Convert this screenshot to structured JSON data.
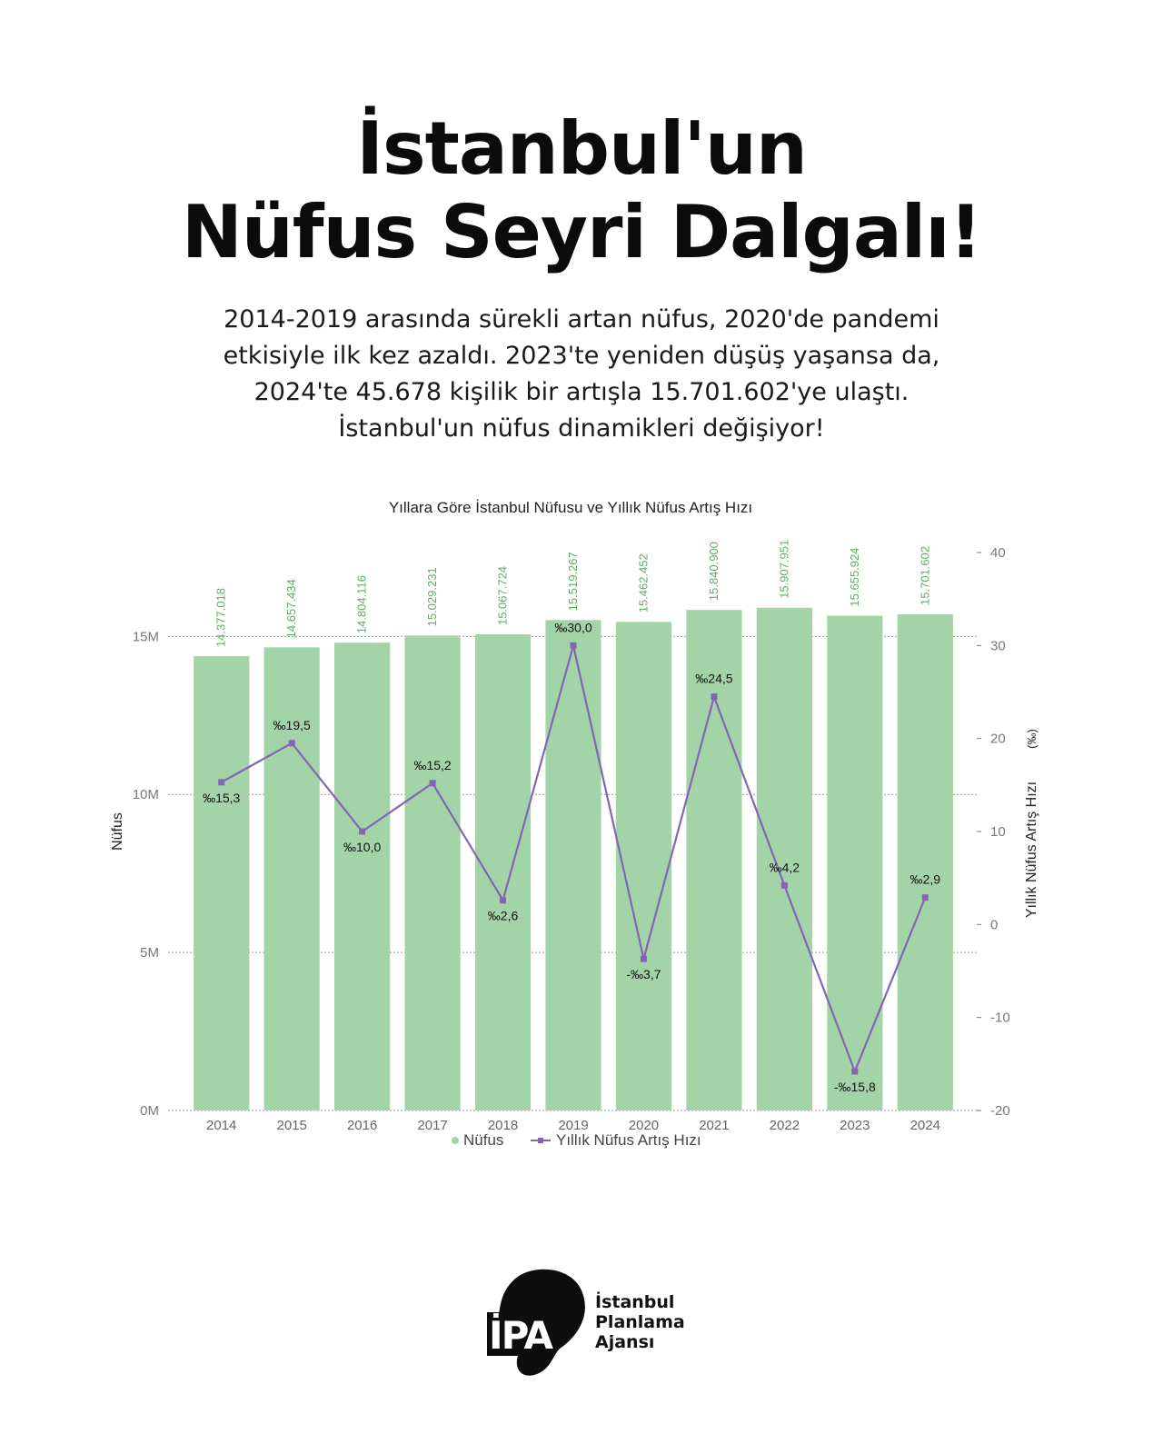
{
  "header": {
    "title_line1": "İstanbul'un",
    "title_line2": "Nüfus Seyri Dalgalı!",
    "subtitle_line1": "2014-2019 arasında sürekli artan nüfus, 2020'de pandemi",
    "subtitle_line2": "etkisiyle ilk kez azaldı. 2023'te yeniden düşüş yaşansa da,",
    "subtitle_line3": "2024'te 45.678 kişilik bir artışla 15.701.602'ye ulaştı.",
    "subtitle_line4": "İstanbul'un nüfus dinamikleri değişiyor!"
  },
  "chart_data": {
    "type": "bar",
    "title": "Yıllara Göre İstanbul Nüfusu ve Yıllık Nüfus Artış Hızı",
    "categories": [
      "2014",
      "2015",
      "2016",
      "2017",
      "2018",
      "2019",
      "2020",
      "2021",
      "2022",
      "2023",
      "2024"
    ],
    "series": [
      {
        "name": "Nüfus",
        "type": "bar",
        "axis": "left",
        "color": "#a3d4a7",
        "values": [
          14377018,
          14657434,
          14804116,
          15029231,
          15067724,
          15519267,
          15462452,
          15840900,
          15907951,
          15655924,
          15701602
        ],
        "labels": [
          "14.377.018",
          "14.657.434",
          "14.804.116",
          "15.029.231",
          "15.067.724",
          "15.519.267",
          "15.462.452",
          "15.840.900",
          "15.907.951",
          "15.655.924",
          "15.701.602"
        ]
      },
      {
        "name": "Yıllık Nüfus Artış Hızı",
        "type": "line",
        "axis": "right",
        "color": "#8465b5",
        "values": [
          15.3,
          19.5,
          10.0,
          15.2,
          2.6,
          30.0,
          -3.7,
          24.5,
          4.2,
          -15.8,
          2.9
        ],
        "labels": [
          "‰15,3",
          "‰19,5",
          "‰10,0",
          "‰15,2",
          "‰2,6",
          "‰30,0",
          "-‰3,7",
          "‰24,5",
          "‰4,2",
          "-‰15,8",
          "‰2,9"
        ]
      }
    ],
    "y_left": {
      "label": "Nüfus",
      "ticks": [
        "0M",
        "5M",
        "10M",
        "15M"
      ],
      "range": [
        0,
        17656250
      ]
    },
    "y_right": {
      "label": "Yıllık Nüfus Artış Hızı",
      "unit": "(‰)",
      "ticks": [
        "-20",
        "-10",
        "0",
        "10",
        "20",
        "30",
        "40"
      ],
      "range": [
        -20,
        40
      ]
    },
    "grid": "dotted horizontal at left-axis ticks",
    "legend": "bottom-center"
  },
  "logo": {
    "mark": "İPA",
    "line1": "İstanbul",
    "line2": "Planlama",
    "line3": "Ajansı"
  }
}
